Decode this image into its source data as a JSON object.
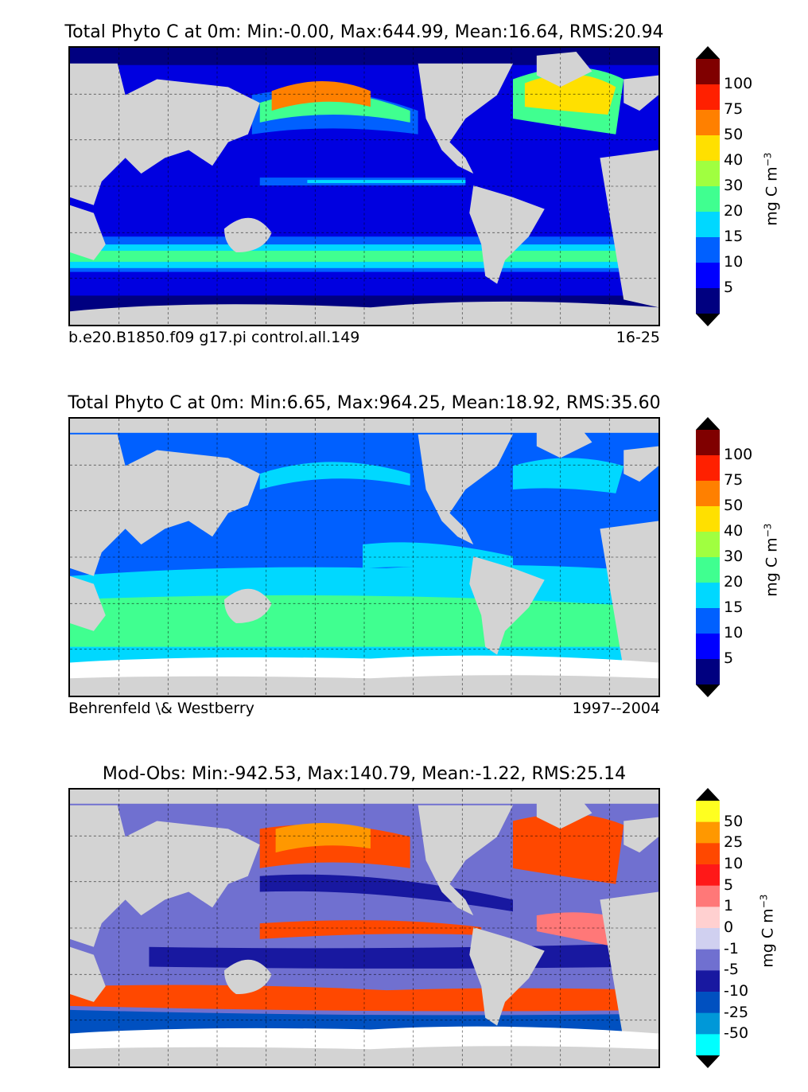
{
  "panels": [
    {
      "title": "Total Phyto C at 0m: Min:-0.00, Max:644.99, Mean:16.64, RMS:20.94",
      "caption_left": "b.e20.B1850.f09 g17.pi control.all.149",
      "caption_right": "16-25",
      "colorbar": {
        "unit": "mg C m",
        "unit_exp": "−3",
        "ticks": [
          "100",
          "75",
          "50",
          "40",
          "30",
          "20",
          "15",
          "10",
          "5"
        ],
        "colors_top_to_bottom": [
          "#800000",
          "#ff2000",
          "#ff8000",
          "#ffe000",
          "#a0ff40",
          "#40ff90",
          "#00d8ff",
          "#0060ff",
          "#0000ff",
          "#000080"
        ]
      }
    },
    {
      "title": "Total Phyto C at 0m: Min:6.65, Max:964.25, Mean:18.92, RMS:35.60",
      "caption_left": "Behrenfeld \\& Westberry",
      "caption_right": "1997--2004",
      "colorbar": {
        "unit": "mg C m",
        "unit_exp": "−3",
        "ticks": [
          "100",
          "75",
          "50",
          "40",
          "30",
          "20",
          "15",
          "10",
          "5"
        ],
        "colors_top_to_bottom": [
          "#800000",
          "#ff2000",
          "#ff8000",
          "#ffe000",
          "#a0ff40",
          "#40ff90",
          "#00d8ff",
          "#0060ff",
          "#0000ff",
          "#000080"
        ]
      }
    },
    {
      "title": "Mod-Obs: Min:-942.53, Max:140.79, Mean:-1.22, RMS:25.14",
      "caption_left": "",
      "caption_right": "",
      "colorbar": {
        "unit": "mg C m",
        "unit_exp": "−3",
        "ticks": [
          "50",
          "25",
          "10",
          "5",
          "1",
          "0",
          "-1",
          "-5",
          "-10",
          "-25",
          "-50"
        ],
        "colors_top_to_bottom": [
          "#ffff20",
          "#ff9800",
          "#ff4800",
          "#ff1818",
          "#ff7878",
          "#ffd0d0",
          "#d0d0f0",
          "#7070d0",
          "#1818a0",
          "#0050c0",
          "#0098d8",
          "#00ffff"
        ]
      }
    }
  ],
  "map_colors": {
    "land": "#d3d3d3",
    "ice": "#ffffff",
    "ocean_low": "#0000ff",
    "ocean_mid": "#0060ff"
  }
}
